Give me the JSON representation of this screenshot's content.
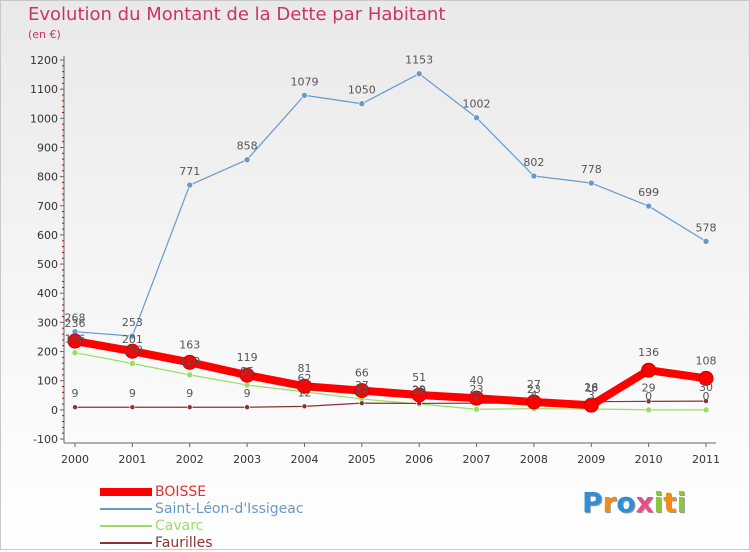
{
  "header": {
    "title": "Evolution du Montant de la Dette par Habitant",
    "subtitle": "(en €)"
  },
  "brand": {
    "logo_text": "Proxiti",
    "letters": [
      {
        "ch": "P",
        "color": "#2f8fd6"
      },
      {
        "ch": "r",
        "color": "#f28c1a"
      },
      {
        "ch": "o",
        "color": "#2f8fd6"
      },
      {
        "ch": "x",
        "color": "#e84c8b"
      },
      {
        "ch": "i",
        "color": "#8cc63f"
      },
      {
        "ch": "t",
        "color": "#f28c1a"
      },
      {
        "ch": "i",
        "color": "#8cc63f"
      }
    ]
  },
  "colors": {
    "title": "#cc3366",
    "axis": "#666666",
    "tick": "#cc0000"
  },
  "chart_data": {
    "type": "line",
    "title": "Evolution du Montant de la Dette par Habitant",
    "subtitle": "(en €)",
    "xlabel": "",
    "ylabel": "",
    "x": [
      "2000",
      "2001",
      "2002",
      "2003",
      "2004",
      "2005",
      "2006",
      "2007",
      "2008",
      "2009",
      "2010",
      "2011"
    ],
    "ylim": [
      -100,
      1200
    ],
    "yticks": [
      -100,
      0,
      100,
      200,
      300,
      400,
      500,
      600,
      700,
      800,
      900,
      1000,
      1100,
      1200
    ],
    "grid": false,
    "legend_position": "bottom-left",
    "series": [
      {
        "name": "BOISSE",
        "color": "#ff0000",
        "width": 8,
        "marker_r": 7,
        "values": [
          236,
          201,
          163,
          119,
          81,
          66,
          51,
          40,
          27,
          16,
          136,
          108
        ],
        "labels": [
          "236",
          "201",
          "163",
          "119",
          "81",
          "66",
          "51",
          "40",
          "27",
          "16",
          "136",
          "108"
        ],
        "label_dy": [
          -14,
          -8,
          -14,
          -14,
          -14,
          -14,
          -14,
          -14,
          -14,
          -14,
          -14,
          -14
        ]
      },
      {
        "name": "Saint-Léon-d'Issigeac",
        "color": "#6699cc",
        "width": 1.2,
        "marker_r": 3,
        "values": [
          268,
          253,
          771,
          858,
          1079,
          1050,
          1153,
          1002,
          802,
          778,
          699,
          578
        ],
        "labels": [
          "268",
          "253",
          "771",
          "858",
          "1079",
          "1050",
          "1153",
          "1002",
          "802",
          "778",
          "699",
          "578"
        ],
        "label_dy": [
          -10,
          -10,
          -10,
          -10,
          -10,
          -10,
          -10,
          -10,
          -10,
          -10,
          -10,
          -10
        ]
      },
      {
        "name": "Cavarc",
        "color": "#99dd66",
        "width": 1.2,
        "marker_r": 3,
        "values": [
          196,
          159,
          120,
          85,
          62,
          37,
          20,
          2,
          4,
          3,
          0,
          0
        ],
        "labels": [
          "196",
          "159",
          "120",
          "85",
          "62",
          "37",
          "20",
          "2",
          "4",
          "3",
          "0",
          "0"
        ],
        "label_dy": [
          -10,
          -10,
          -10,
          -10,
          -10,
          -10,
          -10,
          -10,
          -10,
          -10,
          -10,
          -10
        ]
      },
      {
        "name": "Faurilles",
        "color": "#883333",
        "width": 1.2,
        "marker_r": 2.5,
        "values": [
          9,
          9,
          9,
          9,
          12,
          23,
          22,
          23,
          23,
          28,
          29,
          30
        ],
        "labels": [
          "9",
          "9",
          "9",
          "9",
          "12",
          "23",
          "22",
          "23",
          "23",
          "28",
          "29",
          "30"
        ],
        "label_dy": [
          -10,
          -10,
          -10,
          -10,
          -10,
          -10,
          -10,
          -10,
          -10,
          -10,
          -10,
          -10
        ]
      }
    ]
  }
}
